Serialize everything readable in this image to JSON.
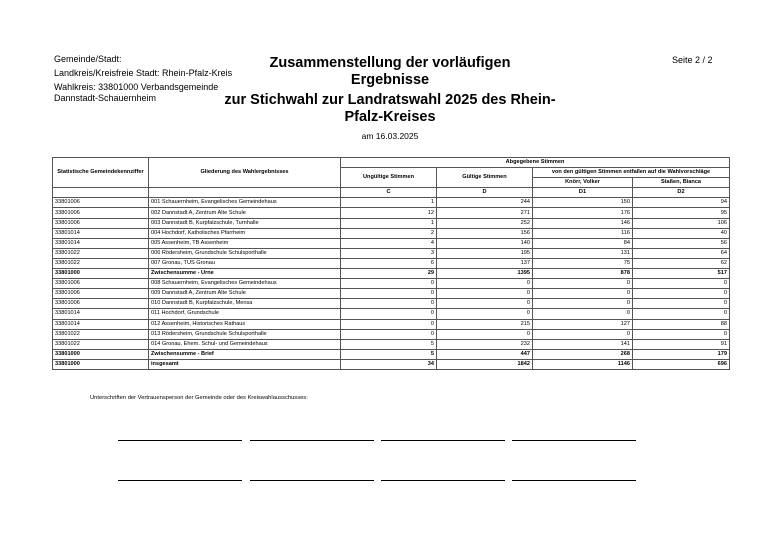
{
  "header": {
    "left": [
      "Gemeinde/Stadt:",
      "Landkreis/Kreisfreie Stadt: Rhein-Pfalz-Kreis",
      "Wahlkreis: 33801000 Verbandsgemeinde Dannstadt-Schauernheim"
    ],
    "title": [
      "Zusammenstellung der vorläufigen Ergebnisse",
      "zur Stichwahl zur Landratswahl 2025 des Rhein-Pfalz-Kreises"
    ],
    "date": "am 16.03.2025",
    "page": "Seite 2 / 2"
  },
  "table": {
    "headers": {
      "code": "Statistische Gemeindekennziffer",
      "name": "Gliederung des Wahlergebnisses",
      "group": "Abgegebene Stimmen",
      "invalid": "Ungültige Stimmen",
      "valid": "Gültige Stimmen",
      "candidates_group": "von den gültigen Stimmen entfallen auf die Wahlvorschläge",
      "cand1": "Knörr, Volker",
      "cand2": "Staßen, Bianca",
      "letters": [
        "C",
        "D",
        "D1",
        "D2"
      ]
    },
    "rows": [
      [
        "33801006",
        "001 Schauernheim, Evangelisches Gemeindehaus",
        1,
        244,
        150,
        94
      ],
      [
        "33801006",
        "002 Dannstadt A, Zentrum Alte Schule",
        12,
        271,
        176,
        95
      ],
      [
        "33801006",
        "003 Dannstadt B, Kurpfalzschule, Turnhalle",
        1,
        252,
        146,
        106
      ],
      [
        "33801014",
        "004 Hochdorf, Katholisches Pfarrheim",
        2,
        156,
        116,
        40
      ],
      [
        "33801014",
        "005 Assenheim, TB Assenheim",
        4,
        140,
        84,
        56
      ],
      [
        "33801022",
        "006 Rödersheim, Grundschule Schulsporthalle",
        3,
        195,
        131,
        64
      ],
      [
        "33801022",
        "007 Gronau, TUS Gronau",
        6,
        137,
        75,
        62
      ],
      [
        "33801000",
        "Zwischensumme - Urne",
        29,
        1395,
        878,
        517
      ],
      [
        "33801006",
        "008 Schauernheim, Evangelisches Gemeindehaus",
        0,
        0,
        0,
        0
      ],
      [
        "33801006",
        "009 Dannstadt A, Zentrum Alte Schule",
        0,
        0,
        0,
        0
      ],
      [
        "33801006",
        "010 Dannstadt B, Kurpfalzschule, Mensa",
        0,
        0,
        0,
        0
      ],
      [
        "33801014",
        "011 Hochdorf, Grundschule",
        0,
        0,
        0,
        0
      ],
      [
        "33801014",
        "012 Assenheim, Historisches Rathaus",
        0,
        215,
        127,
        88
      ],
      [
        "33801022",
        "013 Rödersheim, Grundschule Schulsporthalle",
        0,
        0,
        0,
        0
      ],
      [
        "33801022",
        "014 Gronau, Ehem. Schul- und Gemeindehaus",
        5,
        232,
        141,
        91
      ],
      [
        "33801000",
        "Zwischensumme - Brief",
        5,
        447,
        268,
        179
      ],
      [
        "33801000",
        "insgesamt",
        34,
        1842,
        1146,
        696
      ]
    ]
  },
  "signature": "Unterschriften der Vertrauensperson der Gemeinde oder des Kreiswahlausschusses:"
}
